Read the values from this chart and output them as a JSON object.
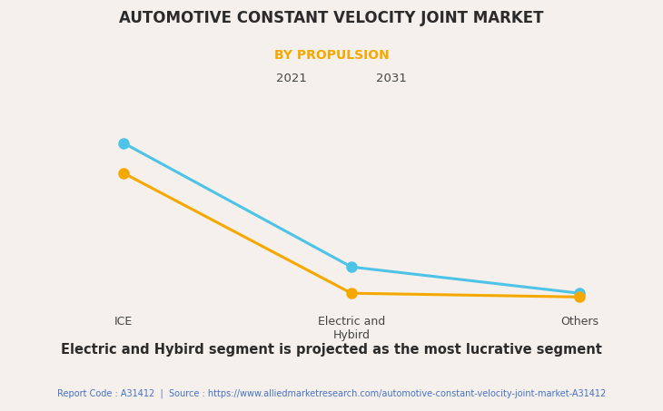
{
  "title": "AUTOMOTIVE CONSTANT VELOCITY JOINT MARKET",
  "subtitle": "BY PROPULSION",
  "categories": [
    "ICE",
    "Electric and\nHybird",
    "Others"
  ],
  "series_2021": [
    0.72,
    0.08,
    0.06
  ],
  "series_2031": [
    0.88,
    0.22,
    0.08
  ],
  "color_2021": "#F5A800",
  "color_2031": "#4DC3E8",
  "legend_2021": "2021",
  "legend_2031": "2031",
  "subtitle_color": "#F5A800",
  "title_color": "#2B2B2B",
  "background_color": "#F5F0EB",
  "grid_color": "#DDDDDD",
  "bottom_text": "Electric and Hybird segment is projected as the most lucrative segment",
  "footer_text": "Report Code : A31412  |  Source : https://www.alliedmarketresearch.com/automotive-constant-velocity-joint-market-A31412",
  "footer_color": "#4472C4",
  "bottom_text_color": "#2B2B2B",
  "marker_size": 8,
  "line_width": 2.2,
  "underline_color": "#AAAAAA"
}
